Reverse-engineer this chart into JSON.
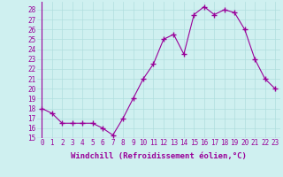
{
  "x": [
    0,
    1,
    2,
    3,
    4,
    5,
    6,
    7,
    8,
    9,
    10,
    11,
    12,
    13,
    14,
    15,
    16,
    17,
    18,
    19,
    20,
    21,
    22,
    23
  ],
  "y": [
    18.0,
    17.5,
    16.5,
    16.5,
    16.5,
    16.5,
    16.0,
    15.3,
    17.0,
    19.0,
    21.0,
    22.5,
    25.0,
    25.5,
    23.5,
    27.5,
    28.3,
    27.5,
    28.0,
    27.7,
    26.0,
    23.0,
    21.0,
    20.0
  ],
  "line_color": "#990099",
  "marker": "+",
  "markersize": 4,
  "linewidth": 0.8,
  "markeredgewidth": 1.0,
  "xlabel": "Windchill (Refroidissement éolien,°C)",
  "xlabel_fontsize": 6.5,
  "xlim": [
    -0.5,
    23.5
  ],
  "ylim": [
    15,
    28.8
  ],
  "yticks": [
    15,
    16,
    17,
    18,
    19,
    20,
    21,
    22,
    23,
    24,
    25,
    26,
    27,
    28
  ],
  "xtick_labels": [
    "0",
    "1",
    "2",
    "3",
    "4",
    "5",
    "6",
    "7",
    "8",
    "9",
    "10",
    "11",
    "12",
    "13",
    "14",
    "15",
    "16",
    "17",
    "18",
    "19",
    "20",
    "21",
    "22",
    "23"
  ],
  "background_color": "#cff0f0",
  "grid_color": "#b0dede",
  "tick_fontsize": 5.5
}
